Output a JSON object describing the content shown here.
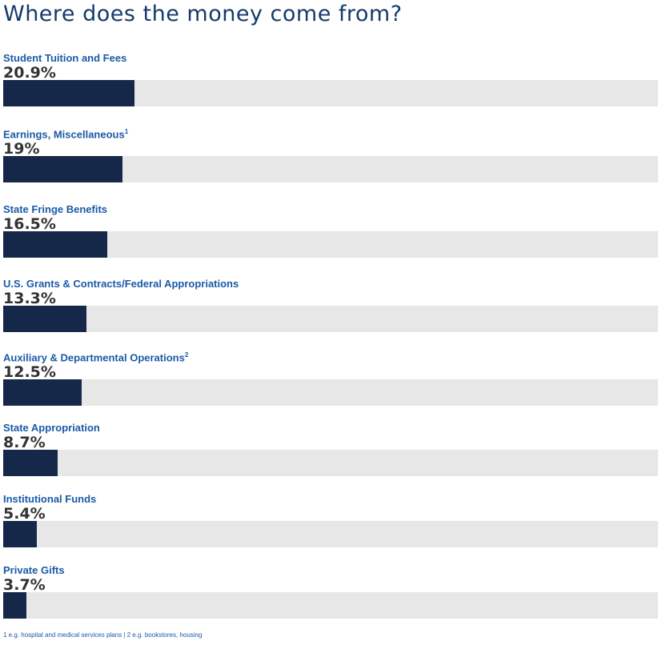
{
  "chart_data": {
    "type": "bar",
    "orientation": "horizontal",
    "title": "Where does the money come from?",
    "xlim": [
      0,
      100
    ],
    "categories": [
      "Student Tuition and Fees",
      "Earnings, Miscellaneous",
      "State Fringe Benefits",
      "U.S. Grants & Contracts/Federal Appropriations",
      "Auxiliary & Departmental Operations",
      "State Appropriation",
      "Institutional Funds",
      "Private Gifts"
    ],
    "footnote_marks": [
      "",
      "1",
      "",
      "",
      "2",
      "",
      "",
      ""
    ],
    "values": [
      20.9,
      19,
      16.5,
      13.3,
      12.5,
      8.7,
      5.4,
      3.7
    ],
    "value_labels": [
      "20.9%",
      "19%",
      "16.5%",
      "13.3%",
      "12.5%",
      "8.7%",
      "5.4%",
      "3.7%"
    ],
    "footnote": "1 e.g. hospital and medical services plans | 2 e.g. bookstores, housing"
  },
  "colors": {
    "bar": "#162849",
    "track": "#e7e7e8",
    "label": "#1a5aa6"
  }
}
